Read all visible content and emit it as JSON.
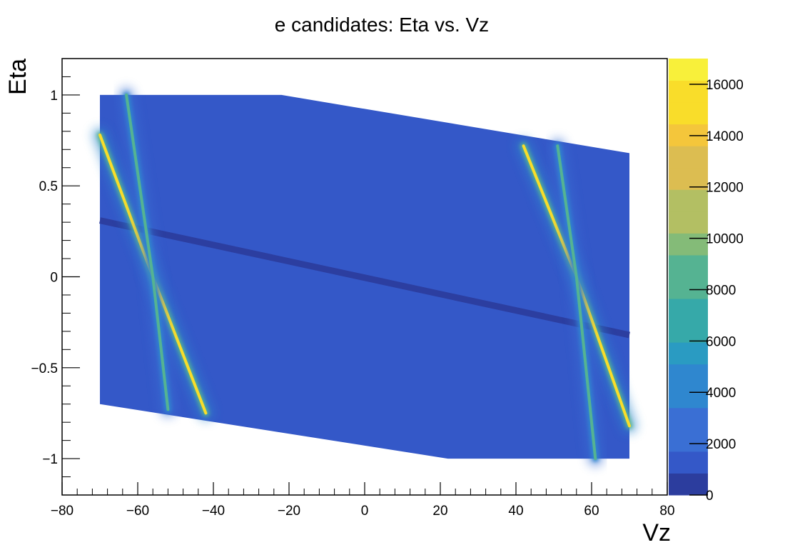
{
  "chart_data": {
    "type": "heatmap",
    "title": "e candidates: Eta vs. Vz",
    "xlabel": "Vz",
    "ylabel": "Eta",
    "xlim": [
      -80,
      80
    ],
    "ylim": [
      -1.2,
      1.2
    ],
    "x_ticks": [
      {
        "value": -80,
        "label": "−80"
      },
      {
        "value": -60,
        "label": "−60"
      },
      {
        "value": -40,
        "label": "−40"
      },
      {
        "value": -20,
        "label": "−20"
      },
      {
        "value": 0,
        "label": "0"
      },
      {
        "value": 20,
        "label": "20"
      },
      {
        "value": 40,
        "label": "40"
      },
      {
        "value": 60,
        "label": "60"
      },
      {
        "value": 80,
        "label": "80"
      }
    ],
    "y_ticks": [
      {
        "value": 1,
        "label": "1"
      },
      {
        "value": 0.5,
        "label": "0.5"
      },
      {
        "value": 0,
        "label": "0"
      },
      {
        "value": -0.5,
        "label": "−0.5"
      },
      {
        "value": -1,
        "label": "−1"
      }
    ],
    "colorbar": {
      "zlim": [
        0,
        17000
      ],
      "levels": 20,
      "ticks": [
        {
          "value": 0,
          "label": "0"
        },
        {
          "value": 2000,
          "label": "2000"
        },
        {
          "value": 4000,
          "label": "4000"
        },
        {
          "value": 6000,
          "label": "6000"
        },
        {
          "value": 8000,
          "label": "8000"
        },
        {
          "value": 10000,
          "label": "10000"
        },
        {
          "value": 12000,
          "label": "12000"
        },
        {
          "value": 14000,
          "label": "14000"
        },
        {
          "value": 16000,
          "label": "16000"
        }
      ],
      "palette": [
        "#2c3d9e",
        "#3458c8",
        "#3a6fd4",
        "#2f87cf",
        "#2a9bc2",
        "#36a9a9",
        "#55b392",
        "#84bb78",
        "#b3bf63",
        "#dcbd51",
        "#f4c63b",
        "#f9dd2a",
        "#f8f03a"
      ]
    },
    "acceptance": {
      "vz_range": [
        -70,
        70
      ],
      "eta_upper": [
        [
          -70,
          1.0
        ],
        [
          -22,
          1.0
        ],
        [
          70,
          0.68
        ]
      ],
      "eta_lower": [
        [
          -70,
          -0.7
        ],
        [
          22,
          -1.0
        ],
        [
          70,
          -1.0
        ]
      ],
      "background_level": 1800
    },
    "features": [
      {
        "name": "flat band",
        "points": [
          [
            -70,
            0.31
          ],
          [
            70,
            -0.32
          ]
        ],
        "level": 600
      },
      {
        "name": "left ridge A",
        "points": [
          [
            -70,
            0.78
          ],
          [
            -56,
            0.0
          ],
          [
            -42,
            -0.75
          ]
        ],
        "level": 15500
      },
      {
        "name": "left ridge B",
        "points": [
          [
            -63,
            1.0
          ],
          [
            -56,
            0.0
          ],
          [
            -52,
            -0.73
          ]
        ],
        "level": 9000
      },
      {
        "name": "right ridge A",
        "points": [
          [
            42,
            0.72
          ],
          [
            56,
            0.0
          ],
          [
            70,
            -0.82
          ]
        ],
        "level": 16000
      },
      {
        "name": "right ridge B",
        "points": [
          [
            51,
            0.72
          ],
          [
            56,
            0.0
          ],
          [
            61,
            -1.0
          ]
        ],
        "level": 9000
      }
    ]
  }
}
